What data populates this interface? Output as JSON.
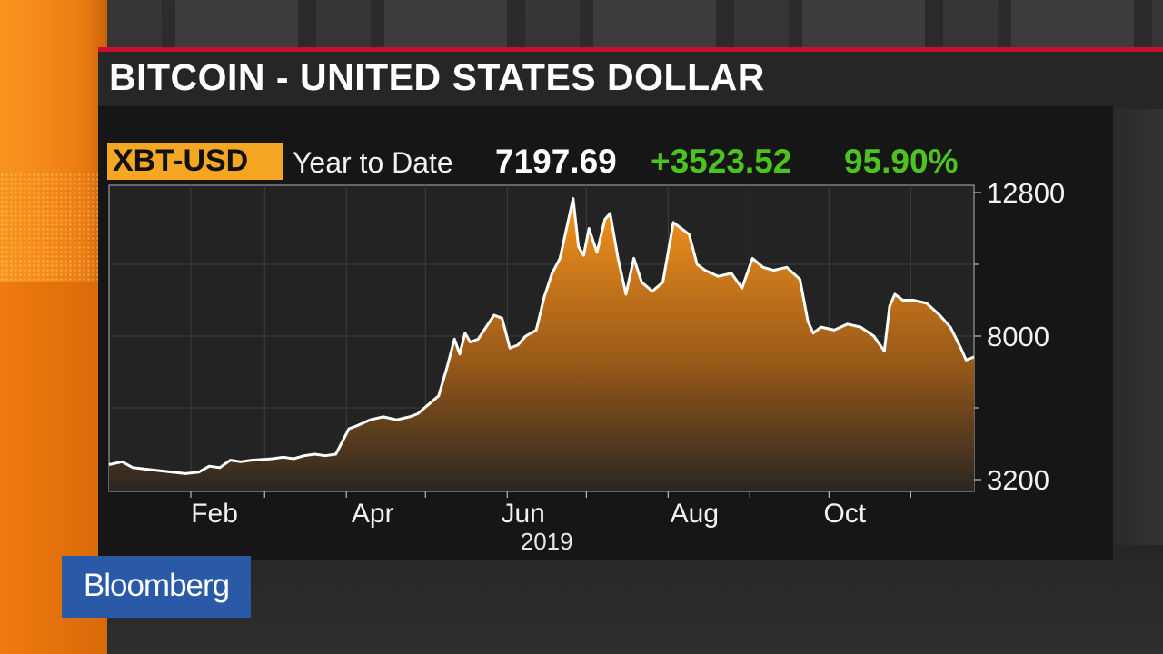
{
  "header": {
    "title": "BITCOIN - UNITED STATES DOLLAR"
  },
  "quote": {
    "ticker": "XBT-USD",
    "period": "Year to Date",
    "last": "7197.69",
    "change": "+3523.52",
    "change_pct": "95.90%"
  },
  "brand": {
    "logo_text": "Bloomberg"
  },
  "colors": {
    "accent_orange": "#f5a623",
    "positive_green": "#4cc41f",
    "brand_blue": "#2a59a8",
    "title_rule_red": "#c8102e"
  },
  "chart_data": {
    "type": "area",
    "title": "",
    "xlabel": "2019",
    "ylabel": "",
    "x_tick_labels": [
      "Feb",
      "Apr",
      "Jun",
      "Aug",
      "Oct"
    ],
    "y_tick_labels": [
      "12800",
      "8000",
      "3200"
    ],
    "ylim": [
      3200,
      12800
    ],
    "xlim": [
      "2019-01-01",
      "2019-11-25"
    ],
    "grid": true,
    "fill": "orange gradient",
    "series": [
      {
        "x": [
          "2019-01-01",
          "2019-01-06",
          "2019-01-10",
          "2019-01-15",
          "2019-01-20",
          "2019-01-25",
          "2019-01-30",
          "2019-02-04",
          "2019-02-08",
          "2019-02-12",
          "2019-02-16",
          "2019-02-20",
          "2019-02-24",
          "2019-02-28",
          "2019-03-04",
          "2019-03-08",
          "2019-03-12",
          "2019-03-16",
          "2019-03-20",
          "2019-03-24",
          "2019-03-28",
          "2019-04-02",
          "2019-04-05",
          "2019-04-10",
          "2019-04-15",
          "2019-04-20",
          "2019-04-25",
          "2019-04-28",
          "2019-05-02",
          "2019-05-06",
          "2019-05-09",
          "2019-05-12",
          "2019-05-14",
          "2019-05-16",
          "2019-05-18",
          "2019-05-21",
          "2019-05-24",
          "2019-05-27",
          "2019-05-30",
          "2019-06-02",
          "2019-06-05",
          "2019-06-08",
          "2019-06-12",
          "2019-06-15",
          "2019-06-18",
          "2019-06-21",
          "2019-06-24",
          "2019-06-26",
          "2019-06-28",
          "2019-06-30",
          "2019-07-02",
          "2019-07-05",
          "2019-07-08",
          "2019-07-10",
          "2019-07-13",
          "2019-07-16",
          "2019-07-19",
          "2019-07-22",
          "2019-07-26",
          "2019-07-30",
          "2019-08-03",
          "2019-08-06",
          "2019-08-09",
          "2019-08-12",
          "2019-08-15",
          "2019-08-20",
          "2019-08-25",
          "2019-08-29",
          "2019-09-02",
          "2019-09-06",
          "2019-09-10",
          "2019-09-15",
          "2019-09-20",
          "2019-09-23",
          "2019-09-25",
          "2019-09-28",
          "2019-10-03",
          "2019-10-08",
          "2019-10-13",
          "2019-10-18",
          "2019-10-22",
          "2019-10-24",
          "2019-10-26",
          "2019-10-29",
          "2019-11-02",
          "2019-11-07",
          "2019-11-12",
          "2019-11-16",
          "2019-11-20",
          "2019-11-22",
          "2019-11-25"
        ],
        "values": [
          3700,
          3800,
          3600,
          3550,
          3500,
          3450,
          3400,
          3450,
          3650,
          3600,
          3850,
          3800,
          3850,
          3870,
          3900,
          3950,
          3900,
          4000,
          4050,
          4000,
          4050,
          4900,
          5000,
          5200,
          5300,
          5200,
          5300,
          5400,
          5700,
          6000,
          6900,
          7900,
          7400,
          8100,
          7800,
          7900,
          8300,
          8700,
          8600,
          7600,
          7700,
          8000,
          8200,
          9300,
          10100,
          10600,
          11800,
          12600,
          11000,
          10700,
          11600,
          10800,
          11900,
          12100,
          10600,
          9400,
          10600,
          9800,
          9500,
          9800,
          11800,
          11600,
          11400,
          10400,
          10200,
          10000,
          10100,
          9600,
          10600,
          10300,
          10200,
          10300,
          9900,
          8500,
          8100,
          8300,
          8200,
          8400,
          8300,
          8000,
          7500,
          9000,
          9400,
          9200,
          9200,
          9100,
          8700,
          8300,
          7600,
          7200,
          7300
        ]
      }
    ]
  }
}
